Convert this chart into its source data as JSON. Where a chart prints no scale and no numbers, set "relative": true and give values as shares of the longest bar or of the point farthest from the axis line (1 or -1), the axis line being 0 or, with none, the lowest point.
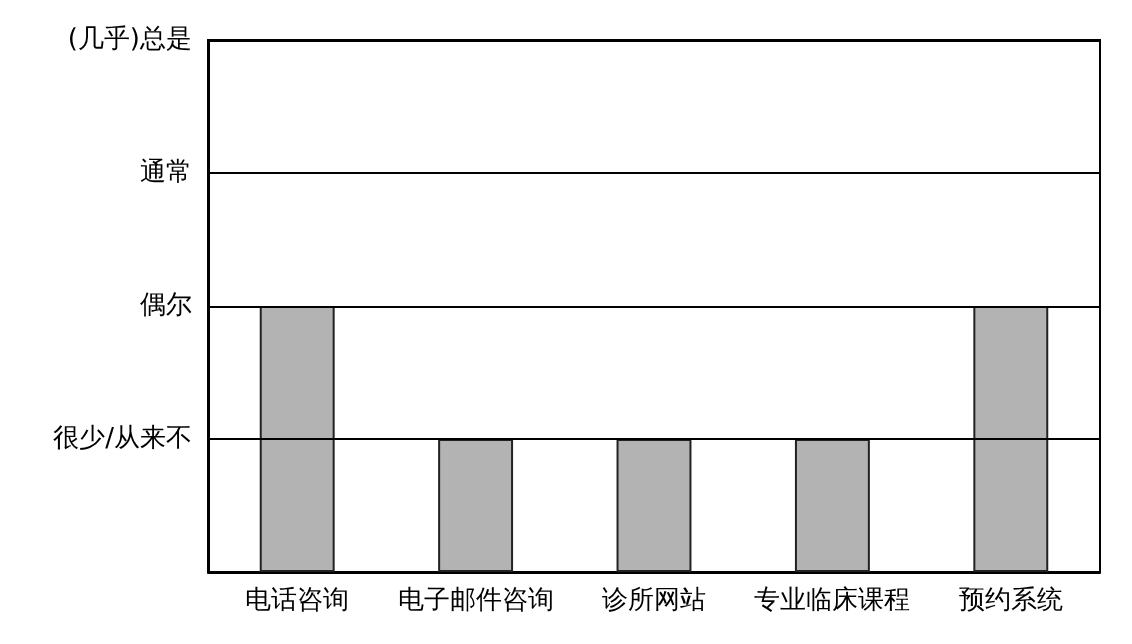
{
  "chart_data": {
    "type": "bar",
    "categories": [
      "电话咨询",
      "电子邮件咨询",
      "诊所网站",
      "专业临床课程",
      "预约系统"
    ],
    "values": [
      1,
      0.5,
      0.5,
      0.5,
      1
    ],
    "color": "#b3b3b3",
    "relative": true,
    "ref_lines": [
      {
        "axis": "y",
        "value": 0.5,
        "label": "很少/从来不",
        "color": "#000000"
      },
      {
        "axis": "y",
        "value": 1,
        "label": "偶尔",
        "color": "#000000"
      },
      {
        "axis": "y",
        "value": 1.5,
        "label": "通常",
        "color": "#000000"
      },
      {
        "axis": "y",
        "value": 2,
        "label": "(几乎)总是",
        "color": "#000000"
      }
    ]
  }
}
